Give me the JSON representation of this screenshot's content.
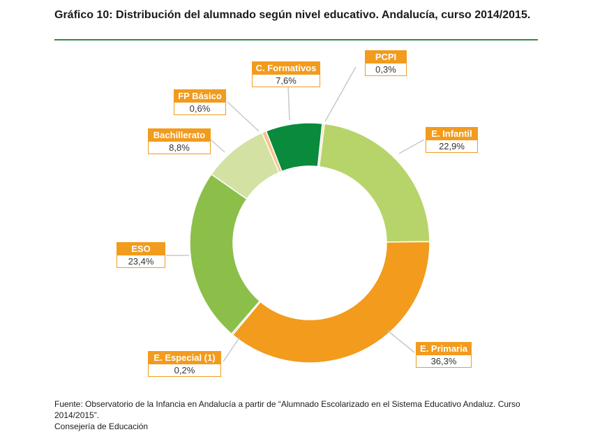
{
  "title": "Gráfico 10: Distribución del alumnado según nivel educativo. Andalucía, curso 2014/2015.",
  "source_line1": "Fuente: Observatorio de la Infancia en Andalucía a partir de “Alumnado Escolarizado en el Sistema Educativo Andaluz. Curso 2014/2015”.",
  "source_line2": "Consejería de Educación",
  "chart_data": {
    "type": "pie",
    "donut": true,
    "slices": [
      {
        "label": "PCPI",
        "value_text": "0,3%",
        "value": 0.3,
        "color": "#f8dcb4"
      },
      {
        "label": "E. Infantil",
        "value_text": "22,9%",
        "value": 22.9,
        "color": "#b7d46a"
      },
      {
        "label": "E. Primaria",
        "value_text": "36,3%",
        "value": 36.3,
        "color": "#f29b1d"
      },
      {
        "label": "E. Especial (1)",
        "value_text": "0,2%",
        "value": 0.2,
        "color": "#9ab0a0"
      },
      {
        "label": "ESO",
        "value_text": "23,4%",
        "value": 23.4,
        "color": "#8bbf4a"
      },
      {
        "label": "Bachillerato",
        "value_text": "8,8%",
        "value": 8.8,
        "color": "#d3e2a3"
      },
      {
        "label": "FP Básico",
        "value_text": "0,6%",
        "value": 0.6,
        "color": "#f6c486"
      },
      {
        "label": "C. Formativos",
        "value_text": "7,6%",
        "value": 7.6,
        "color": "#0a8a3c"
      }
    ],
    "colors": {
      "label_box": "#f29b1d",
      "rule": "#2e8b47",
      "leader": "#c8c8c8"
    }
  }
}
